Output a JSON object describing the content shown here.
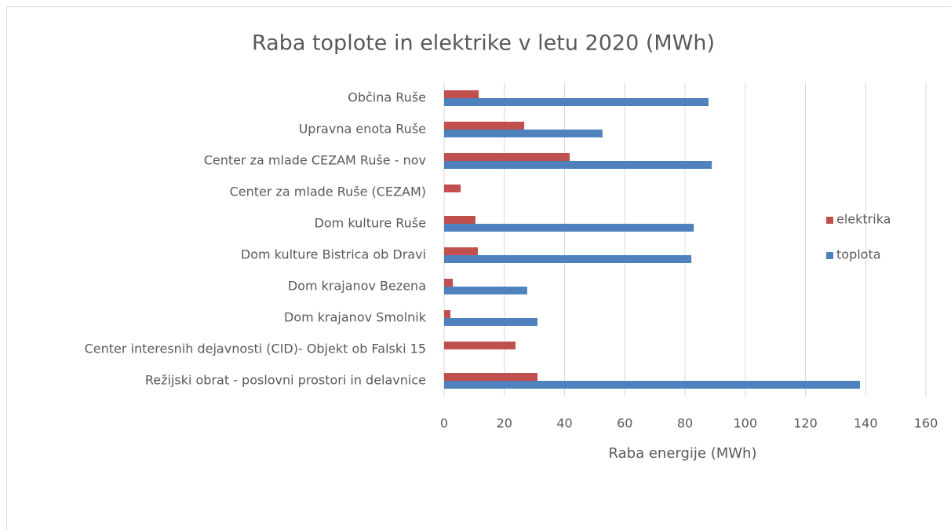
{
  "chart_data": {
    "type": "bar",
    "orientation": "horizontal",
    "title": "Raba toplote in elektrike v letu 2020 (MWh)",
    "x_label": "Raba energije (MWh)",
    "categories": [
      "Občina Ruše",
      "Upravna enota Ruše",
      "Center za mlade CEZAM Ruše - nov",
      "Center za mlade Ruše (CEZAM)",
      "Dom kulture Ruše",
      "Dom kulture Bistrica ob Dravi",
      "Dom krajanov Bezena",
      "Dom krajanov Smolnik",
      "Center interesnih dejavnosti (CID)- Objekt ob Falski 15",
      "Režijski obrat - poslovni prostori in delavnice"
    ],
    "series": [
      {
        "name": "elektrika",
        "color": "#c0504d",
        "values": [
          11.5,
          26.6,
          41.7,
          5.5,
          10.4,
          11.2,
          2.9,
          2.1,
          23.7,
          31
        ]
      },
      {
        "name": "toplota",
        "color": "#4f81bd",
        "values": [
          87.8,
          52.6,
          88.9,
          null,
          82.9,
          82.1,
          27.6,
          31,
          null,
          138.1
        ]
      }
    ],
    "xlim": [
      0,
      160
    ],
    "xticks": [
      0,
      20,
      40,
      60,
      80,
      100,
      120,
      140,
      160
    ],
    "grid": true,
    "legend": "right"
  }
}
